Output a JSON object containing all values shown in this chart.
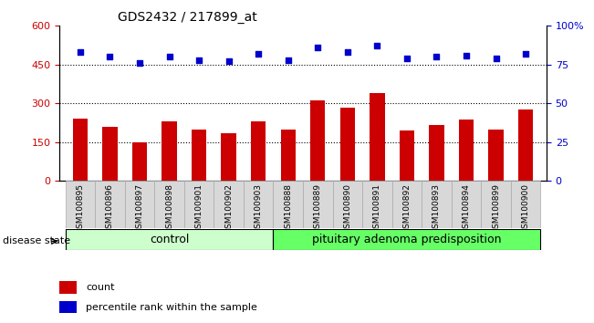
{
  "title": "GDS2432 / 217899_at",
  "categories": [
    "GSM100895",
    "GSM100896",
    "GSM100897",
    "GSM100898",
    "GSM100901",
    "GSM100902",
    "GSM100903",
    "GSM100888",
    "GSM100889",
    "GSM100890",
    "GSM100891",
    "GSM100892",
    "GSM100893",
    "GSM100894",
    "GSM100899",
    "GSM100900"
  ],
  "bar_values": [
    240,
    210,
    148,
    232,
    198,
    183,
    230,
    200,
    310,
    285,
    340,
    195,
    215,
    238,
    200,
    277
  ],
  "percentile_values": [
    83,
    80,
    76,
    80,
    78,
    77,
    82,
    78,
    86,
    83,
    87,
    79,
    80,
    81,
    79,
    82
  ],
  "bar_color": "#cc0000",
  "dot_color": "#0000cc",
  "ylim_left": [
    0,
    600
  ],
  "ylim_right": [
    0,
    100
  ],
  "yticks_left": [
    0,
    150,
    300,
    450,
    600
  ],
  "yticks_right": [
    0,
    25,
    50,
    75,
    100
  ],
  "grid_values": [
    150,
    300,
    450
  ],
  "control_label": "control",
  "disease_label": "pituitary adenoma predisposition",
  "disease_state_label": "disease state",
  "legend_count": "count",
  "legend_percentile": "percentile rank within the sample",
  "control_color": "#ccffcc",
  "disease_color": "#66ff66",
  "n_control": 7,
  "n_disease": 9,
  "bar_width": 0.5,
  "bg_color": "#f0f0f0"
}
